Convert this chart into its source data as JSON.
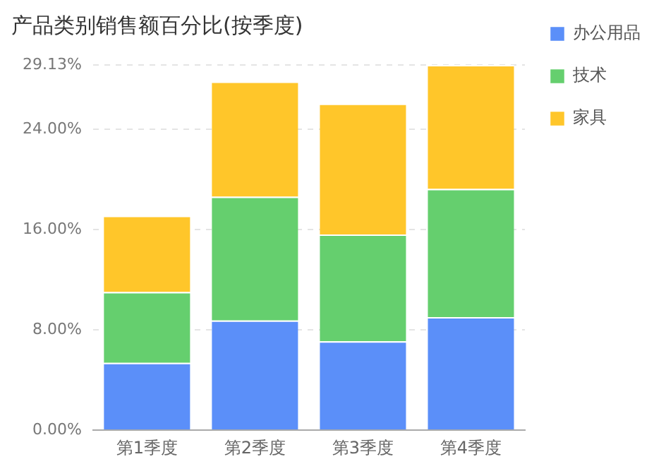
{
  "chart_data": {
    "type": "bar",
    "title": "产品类别销售额百分比(按季度)",
    "categories": [
      "第1季度",
      "第2季度",
      "第3季度",
      "第4季度"
    ],
    "series": [
      {
        "name": "办公用品",
        "color": "#5b8ff9",
        "values": [
          5.37,
          8.75,
          7.1,
          9.02
        ]
      },
      {
        "name": "技术",
        "color": "#65cf6e",
        "values": [
          5.65,
          9.88,
          8.51,
          10.23
        ]
      },
      {
        "name": "家具",
        "color": "#ffc62a",
        "values": [
          6.08,
          9.17,
          10.43,
          9.88
        ]
      }
    ],
    "stacked": true,
    "ylim": [
      0,
      29.13
    ],
    "yticks": [
      {
        "value": 0,
        "label": "0.00%"
      },
      {
        "value": 8,
        "label": "8.00%"
      },
      {
        "value": 16,
        "label": "16.00%"
      },
      {
        "value": 24,
        "label": "24.00%"
      },
      {
        "value": 29.13,
        "label": "29.13%"
      }
    ],
    "grid": "y",
    "line_style": "dashed",
    "legend": "top right"
  }
}
